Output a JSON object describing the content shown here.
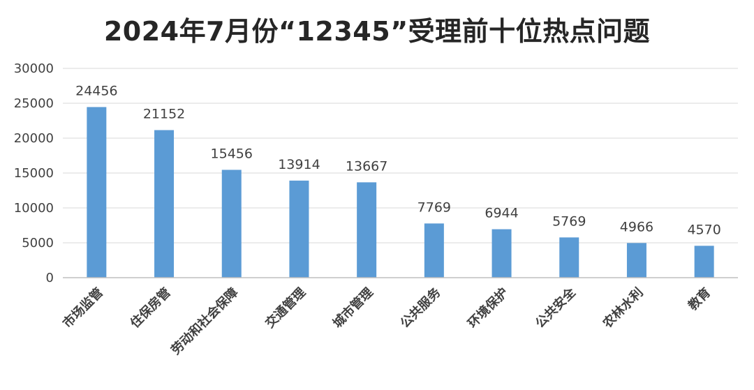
{
  "chart_data": {
    "type": "bar",
    "title": "2024年7月份“12345”受理前十位热点问题",
    "categories": [
      "市场监管",
      "住保房管",
      "劳动和社会保障",
      "交通管理",
      "城市管理",
      "公共服务",
      "环境保护",
      "公共安全",
      "农林水利",
      "教育"
    ],
    "values": [
      24456,
      21152,
      15456,
      13914,
      13667,
      7769,
      6944,
      5769,
      4966,
      4570
    ],
    "data_labels": [
      "24456",
      "21152",
      "15456",
      "13914",
      "13667",
      "7769",
      "6944",
      "5769",
      "4966",
      "4570"
    ],
    "ylim": [
      0,
      30000
    ],
    "yticks": [
      0,
      5000,
      10000,
      15000,
      20000,
      25000,
      30000
    ],
    "ytick_labels": [
      "0",
      "5000",
      "10000",
      "15000",
      "20000",
      "25000",
      "30000"
    ],
    "xlabel": "",
    "ylabel": "",
    "grid": true,
    "legend": "none",
    "colors": {
      "bar": "#5B9BD5",
      "grid": "#D9D9D9",
      "axis": "#BFBFBF",
      "text": "#404040",
      "title": "#262626"
    }
  }
}
